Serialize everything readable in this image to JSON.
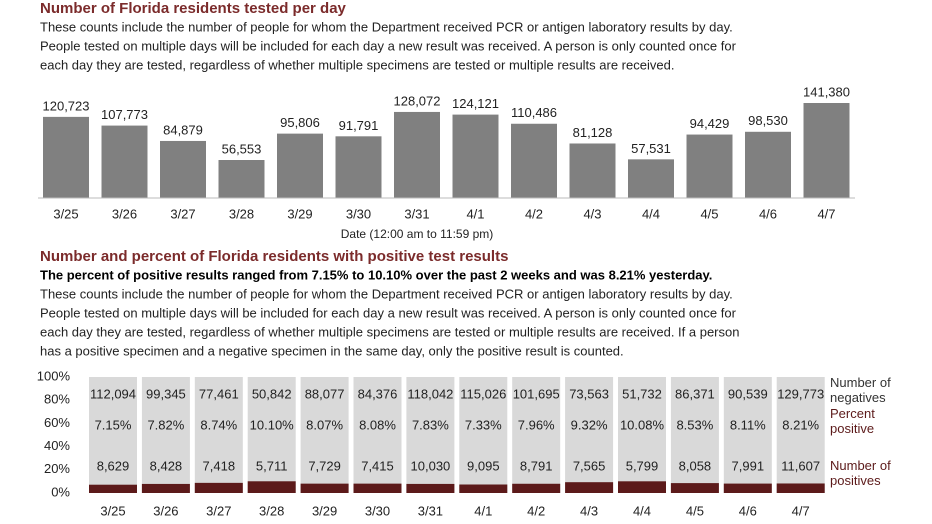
{
  "chart_data": [
    {
      "type": "bar",
      "title": "Number of Florida residents tested per day",
      "notes": [
        "These counts include the number of people for whom the Department received PCR or antigen laboratory results by day.",
        "People tested on multiple days will be included for each day a new result was received. A person is only counted once for",
        "each day they are tested, regardless of whether multiple specimens are tested or multiple results are received."
      ],
      "xlabel": "Date (12:00 am to 11:59 pm)",
      "categories": [
        "3/25",
        "3/26",
        "3/27",
        "3/28",
        "3/29",
        "3/30",
        "3/31",
        "4/1",
        "4/2",
        "4/3",
        "4/4",
        "4/5",
        "4/6",
        "4/7"
      ],
      "values": [
        120723,
        107773,
        84879,
        56553,
        95806,
        91791,
        128072,
        124121,
        110486,
        81128,
        57531,
        94429,
        98530,
        141380
      ],
      "value_labels": [
        "120,723",
        "107,773",
        "84,879",
        "56,553",
        "95,806",
        "91,791",
        "128,072",
        "124,121",
        "110,486",
        "81,128",
        "57,531",
        "94,429",
        "98,530",
        "141,380"
      ],
      "color": "#808080"
    },
    {
      "type": "stacked_percent",
      "title": "Number and percent of Florida residents with positive test results",
      "subtitle": "The percent of positive results ranged from 7.15% to 10.10% over the past 2 weeks and was 8.21% yesterday.",
      "notes": [
        "These counts include the number of people for whom the Department received PCR or antigen laboratory results by day.",
        "People tested on multiple days will be included for each day a new result was received. A person is only counted once for",
        "each day they are tested, regardless of whether multiple specimens are tested or multiple results are received. If a person",
        "has a positive specimen and a negative specimen in the same day, only the positive result is counted."
      ],
      "categories": [
        "3/25",
        "3/26",
        "3/27",
        "3/28",
        "3/29",
        "3/30",
        "3/31",
        "4/1",
        "4/2",
        "4/3",
        "4/4",
        "4/5",
        "4/6",
        "4/7"
      ],
      "ylim": [
        0,
        100
      ],
      "yticks": [
        {
          "value": 0,
          "label": "0%"
        },
        {
          "value": 20,
          "label": "20%"
        },
        {
          "value": 40,
          "label": "40%"
        },
        {
          "value": 60,
          "label": "60%"
        },
        {
          "value": 80,
          "label": "80%"
        },
        {
          "value": 100,
          "label": "100%"
        }
      ],
      "series": [
        {
          "name": "Number of negatives",
          "color": "#d9d9d9",
          "values": [
            112094,
            99345,
            77461,
            50842,
            88077,
            84376,
            118042,
            115026,
            101695,
            73563,
            51732,
            86371,
            90539,
            129773
          ],
          "value_labels": [
            "112,094",
            "99,345",
            "77,461",
            "50,842",
            "88,077",
            "84,376",
            "118,042",
            "115,026",
            "101,695",
            "73,563",
            "51,732",
            "86,371",
            "90,539",
            "129,773"
          ]
        },
        {
          "name": "Percent positive",
          "color": "#5c1a1a",
          "values": [
            7.15,
            7.82,
            8.74,
            10.1,
            8.07,
            8.08,
            7.83,
            7.33,
            7.96,
            9.32,
            10.08,
            8.53,
            8.11,
            8.21
          ],
          "value_labels": [
            "7.15%",
            "7.82%",
            "8.74%",
            "10.10%",
            "8.07%",
            "8.08%",
            "7.83%",
            "7.33%",
            "7.96%",
            "9.32%",
            "10.08%",
            "8.53%",
            "8.11%",
            "8.21%"
          ]
        },
        {
          "name": "Number of positives",
          "color": "#5c1a1a",
          "values": [
            8629,
            8428,
            7418,
            5711,
            7729,
            7415,
            10030,
            9095,
            8791,
            7565,
            5799,
            8058,
            7991,
            11607
          ],
          "value_labels": [
            "8,629",
            "8,428",
            "7,418",
            "5,711",
            "7,729",
            "7,415",
            "10,030",
            "9,095",
            "8,791",
            "7,565",
            "5,799",
            "8,058",
            "7,991",
            "11,607"
          ]
        }
      ]
    }
  ]
}
